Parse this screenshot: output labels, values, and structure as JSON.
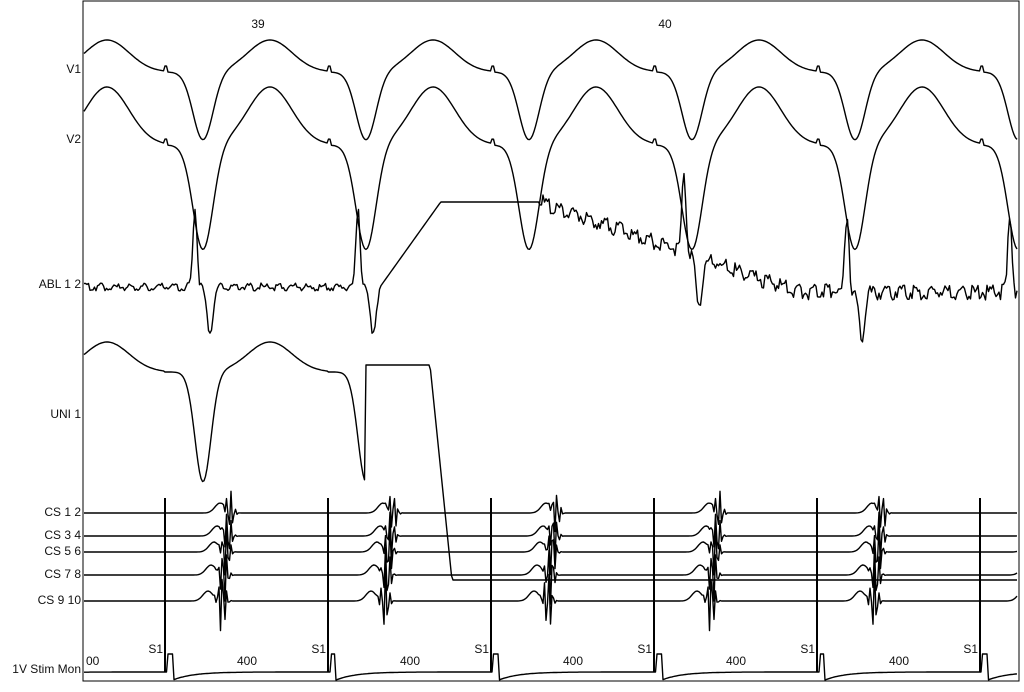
{
  "beat_numbers": [
    "39",
    "40"
  ],
  "channels": [
    "V1",
    "V2",
    "ABL 1 2",
    "UNI 1",
    "CS 1 2",
    "CS 3 4",
    "CS 5 6",
    "CS 7 8",
    "CS 9 10",
    "1V Stim Mon"
  ],
  "stim": {
    "left_interval": "00",
    "marker": "S1",
    "intervals": [
      "400",
      "400",
      "400",
      "400",
      "400"
    ]
  }
}
